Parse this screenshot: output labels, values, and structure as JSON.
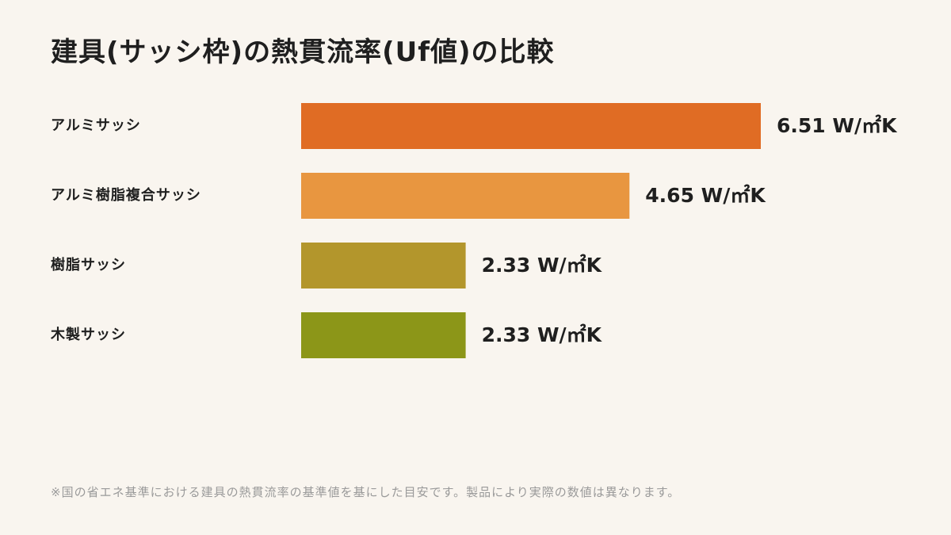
{
  "chart_data": {
    "type": "bar",
    "orientation": "horizontal",
    "title": "建具(サッシ枠)の熱貫流率(Uf値)の比較",
    "categories": [
      "アルミサッシ",
      "アルミ樹脂複合サッシ",
      "樹脂サッシ",
      "木製サッシ"
    ],
    "values": [
      6.51,
      4.65,
      2.33,
      2.33
    ],
    "unit": "W/㎡K",
    "value_labels": [
      "6.51 W/㎡K",
      "4.65 W/㎡K",
      "2.33 W/㎡K",
      "2.33 W/㎡K"
    ],
    "colors": [
      "#e06c24",
      "#e89640",
      "#b3962c",
      "#8c9618"
    ],
    "grid": false,
    "axes_visible": false,
    "xlim": [
      0,
      6.51
    ]
  },
  "footnote": "※国の省エネ基準における建具の熱貫流率の基準値を基にした目安です。製品により実際の数値は異なります。"
}
